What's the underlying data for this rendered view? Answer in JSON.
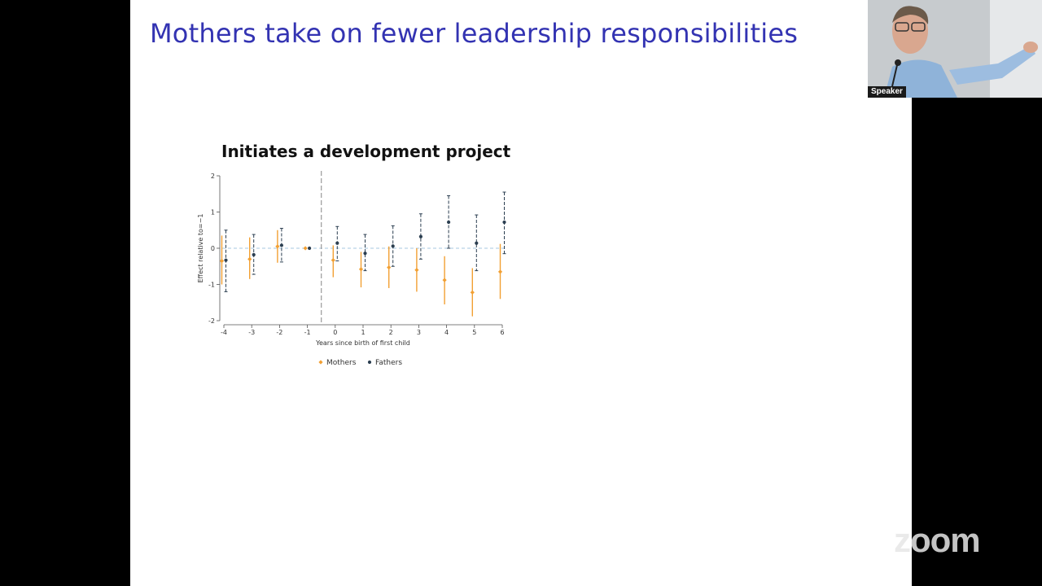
{
  "slide": {
    "title": "Mothers take on fewer leadership responsibilities"
  },
  "video": {
    "speaker_label": "Speaker"
  },
  "watermark": {
    "text": "zoom"
  },
  "colors": {
    "title": "#3333b2",
    "mothers": "#f2a033",
    "fathers": "#2b3e50",
    "zero_line": "#b9d2e8",
    "event_line": "#999999"
  },
  "chart_data": {
    "type": "scatter",
    "title": "Initiates a development project",
    "xlabel": "Years since birth of first child",
    "ylabel": "Effect relative to=−1",
    "x": [
      -4,
      -3,
      -2,
      -1,
      0,
      1,
      2,
      3,
      4,
      5,
      6
    ],
    "xticks": [
      "-4",
      "-3",
      "-2",
      "-1",
      "0",
      "1",
      "2",
      "3",
      "4",
      "5",
      "6"
    ],
    "yticks": [
      "-2",
      "-1",
      "0",
      "1",
      "2"
    ],
    "ylim": [
      -2,
      2
    ],
    "xlim": [
      -4,
      6
    ],
    "event_line_x": -0.5,
    "legend_position": "bottom",
    "series": [
      {
        "name": "Mothers",
        "color": "#f2a033",
        "values": [
          -0.35,
          -0.3,
          0.05,
          0.0,
          -0.33,
          -0.58,
          -0.53,
          -0.6,
          -0.88,
          -1.22,
          -0.65
        ],
        "lower": [
          -1.0,
          -0.85,
          -0.4,
          0.0,
          -0.8,
          -1.08,
          -1.1,
          -1.2,
          -1.55,
          -1.88,
          -1.4
        ],
        "upper": [
          0.35,
          0.3,
          0.5,
          0.0,
          0.08,
          -0.1,
          0.05,
          0.0,
          -0.22,
          -0.55,
          0.12
        ]
      },
      {
        "name": "Fathers",
        "color": "#2b3e50",
        "values": [
          -0.33,
          -0.18,
          0.08,
          0.0,
          0.14,
          -0.14,
          0.06,
          0.32,
          0.72,
          0.14,
          0.72
        ],
        "lower": [
          -1.2,
          -0.72,
          -0.38,
          0.0,
          -0.35,
          -0.62,
          -0.5,
          -0.3,
          0.0,
          -0.62,
          -0.15
        ],
        "upper": [
          0.5,
          0.38,
          0.55,
          0.0,
          0.6,
          0.38,
          0.62,
          0.95,
          1.45,
          0.92,
          1.55
        ]
      }
    ]
  }
}
